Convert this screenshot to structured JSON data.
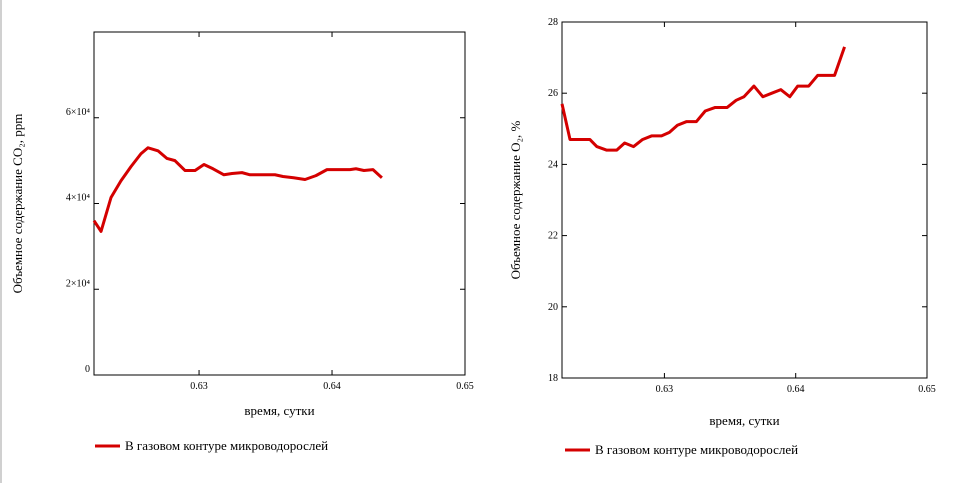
{
  "chart_data": [
    {
      "type": "line",
      "ylabel": "Объемное содержание CO₂, ppm",
      "xlabel": "время, сутки",
      "x": [
        0.6221,
        0.62263,
        0.62338,
        0.62413,
        0.62488,
        0.62563,
        0.62616,
        0.62691,
        0.62759,
        0.62819,
        0.62894,
        0.6297,
        0.63037,
        0.63105,
        0.63187,
        0.63248,
        0.63323,
        0.63383,
        0.63458,
        0.63571,
        0.63631,
        0.63711,
        0.63797,
        0.63879,
        0.63962,
        0.64052,
        0.64135,
        0.6418,
        0.6424,
        0.64308,
        0.64375
      ],
      "series": [
        {
          "name": "В газовом контуре микроводорослей",
          "color": "#d40000",
          "values": [
            36000,
            33500,
            41400,
            45300,
            48600,
            51600,
            53000,
            52300,
            50500,
            50000,
            47700,
            47700,
            49100,
            48100,
            46700,
            47000,
            47200,
            46700,
            46700,
            46700,
            46300,
            46000,
            45600,
            46500,
            47900,
            47900,
            47900,
            48100,
            47700,
            47900,
            46000
          ]
        }
      ],
      "xlim": [
        0.6221,
        0.65
      ],
      "xticks": [
        0.63,
        0.64,
        0.65
      ],
      "ylim": [
        0,
        80000
      ],
      "yticks": [
        0,
        {
          "value": 20000,
          "label": "2×10⁴"
        },
        {
          "value": 40000,
          "label": "4×10⁴"
        },
        {
          "value": 60000,
          "label": "6×10⁴"
        }
      ]
    },
    {
      "type": "line",
      "ylabel": "Объемное содержание O₂, %",
      "xlabel": "время, сутки",
      "x": [
        0.6222,
        0.62281,
        0.62432,
        0.62485,
        0.62561,
        0.62637,
        0.62697,
        0.62765,
        0.62834,
        0.62902,
        0.62978,
        0.63038,
        0.63099,
        0.63167,
        0.63243,
        0.63311,
        0.63387,
        0.63478,
        0.63546,
        0.63606,
        0.63682,
        0.6375,
        0.63818,
        0.63887,
        0.63955,
        0.64015,
        0.64099,
        0.64167,
        0.64235,
        0.64296,
        0.64372
      ],
      "series": [
        {
          "name": "В газовом контуре микроводорослей",
          "color": "#d40000",
          "values": [
            25.7,
            24.7,
            24.7,
            24.5,
            24.4,
            24.4,
            24.6,
            24.5,
            24.7,
            24.8,
            24.8,
            24.9,
            25.1,
            25.2,
            25.2,
            25.5,
            25.6,
            25.6,
            25.8,
            25.9,
            26.2,
            25.9,
            26.0,
            26.1,
            25.9,
            26.2,
            26.2,
            26.5,
            26.5,
            26.5,
            27.3
          ]
        }
      ],
      "xlim": [
        0.6222,
        0.65
      ],
      "xticks": [
        0.63,
        0.64,
        0.65
      ],
      "ylim": [
        18,
        28
      ],
      "yticks": [
        18,
        20,
        22,
        24,
        26,
        28
      ]
    }
  ]
}
